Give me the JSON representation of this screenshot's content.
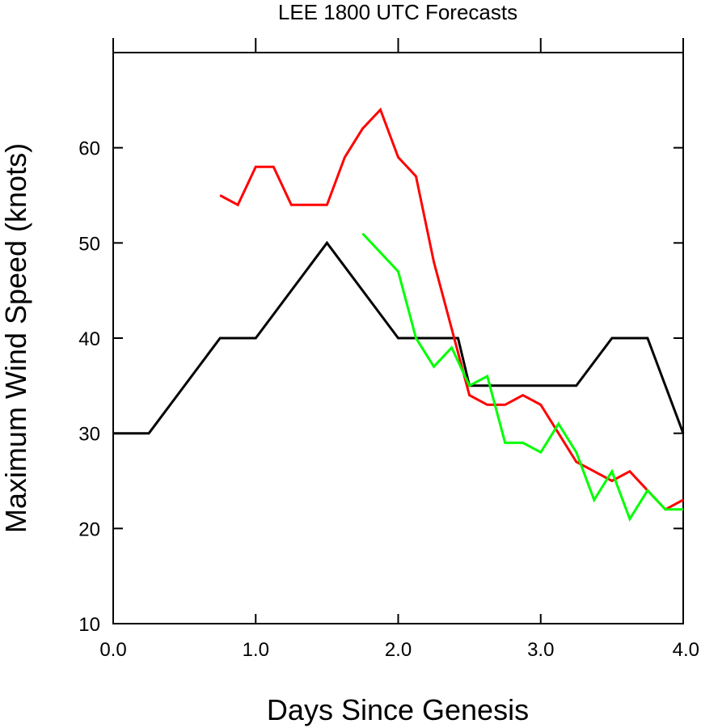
{
  "chart_data": {
    "type": "line",
    "title": "LEE 1800 UTC Forecasts",
    "xlabel": "Days Since Genesis",
    "ylabel": "Maximum Wind Speed (knots)",
    "xlim": [
      0,
      4
    ],
    "ylim": [
      10,
      70
    ],
    "x_ticks": [
      0,
      1,
      2,
      3,
      4
    ],
    "x_tick_labels": [
      "0.0",
      "1.0",
      "2.0",
      "3.0",
      "4.0"
    ],
    "y_ticks": [
      10,
      20,
      30,
      40,
      50,
      60
    ],
    "y_tick_labels": [
      "10",
      "20",
      "30",
      "40",
      "50",
      "60"
    ],
    "grid": false,
    "legend": null,
    "series": [
      {
        "name": "black",
        "color": "#000000",
        "points": [
          [
            0,
            30
          ],
          [
            0.25,
            30
          ],
          [
            0.75,
            40
          ],
          [
            1.0,
            40
          ],
          [
            1.5,
            50
          ],
          [
            2.0,
            40
          ],
          [
            2.42,
            40
          ],
          [
            2.5,
            35
          ],
          [
            3.25,
            35
          ],
          [
            3.5,
            40
          ],
          [
            3.75,
            40
          ],
          [
            4.0,
            30
          ]
        ]
      },
      {
        "name": "red",
        "color": "#ff0000",
        "points": [
          [
            0.75,
            55
          ],
          [
            0.875,
            54
          ],
          [
            1.0,
            58
          ],
          [
            1.125,
            58
          ],
          [
            1.25,
            54
          ],
          [
            1.5,
            54
          ],
          [
            1.625,
            59
          ],
          [
            1.75,
            62
          ],
          [
            1.875,
            64
          ],
          [
            2.0,
            59
          ],
          [
            2.125,
            57
          ],
          [
            2.25,
            48
          ],
          [
            2.375,
            41
          ],
          [
            2.5,
            34
          ],
          [
            2.625,
            33
          ],
          [
            2.75,
            33
          ],
          [
            2.875,
            34
          ],
          [
            3.0,
            33
          ],
          [
            3.125,
            30
          ],
          [
            3.25,
            27
          ],
          [
            3.375,
            26
          ],
          [
            3.5,
            25
          ],
          [
            3.625,
            26
          ],
          [
            3.75,
            24
          ],
          [
            3.875,
            22
          ],
          [
            4.0,
            23
          ]
        ]
      },
      {
        "name": "green",
        "color": "#00ff00",
        "points": [
          [
            1.75,
            51
          ],
          [
            2.0,
            47
          ],
          [
            2.125,
            40
          ],
          [
            2.25,
            37
          ],
          [
            2.375,
            39
          ],
          [
            2.5,
            35
          ],
          [
            2.625,
            36
          ],
          [
            2.75,
            29
          ],
          [
            2.875,
            29
          ],
          [
            3.0,
            28
          ],
          [
            3.125,
            31
          ],
          [
            3.25,
            28
          ],
          [
            3.375,
            23
          ],
          [
            3.5,
            26
          ],
          [
            3.625,
            21
          ],
          [
            3.75,
            24
          ],
          [
            3.875,
            22
          ],
          [
            4.0,
            22
          ]
        ]
      }
    ]
  }
}
